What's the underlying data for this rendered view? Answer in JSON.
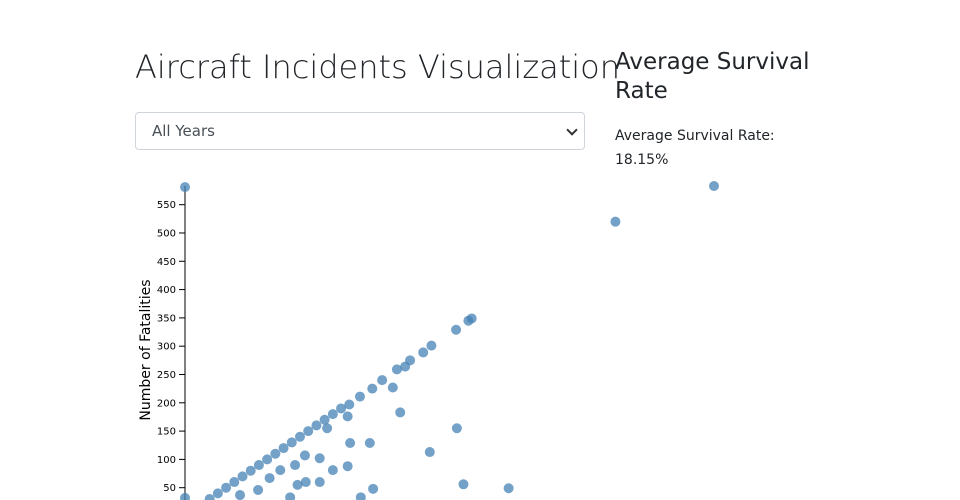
{
  "header": {
    "title": "Aircraft Incidents Visualization"
  },
  "filter": {
    "selected": "All Years"
  },
  "summary": {
    "heading": "Average Survival Rate",
    "label": "Average Survival Rate:",
    "value": "18.15%"
  },
  "chart_data": {
    "type": "scatter",
    "y_label": "Number of Fatalities",
    "color": "#4682b4",
    "xlim": [
      0,
      644
    ],
    "ylim": [
      0,
      583
    ],
    "yticks": [
      50,
      100,
      150,
      200,
      250,
      300,
      350,
      400,
      450,
      500,
      550
    ],
    "x": [
      644,
      524,
      0,
      0,
      349,
      345,
      330,
      300,
      290,
      274,
      268,
      258,
      240,
      228,
      213,
      200,
      190,
      180,
      170,
      160,
      150,
      140,
      130,
      120,
      110,
      100,
      90,
      80,
      70,
      60,
      50,
      40,
      30,
      262,
      331,
      298,
      339,
      394,
      253,
      225,
      201,
      198,
      173,
      229,
      214,
      198,
      180,
      164,
      164,
      147,
      137,
      116,
      134,
      146,
      89,
      103,
      67,
      128
    ],
    "values": [
      583,
      520,
      581,
      32,
      349,
      345,
      329,
      301,
      289,
      275,
      264,
      259,
      240,
      225,
      211,
      197,
      190,
      180,
      170,
      160,
      150,
      140,
      130,
      120,
      110,
      100,
      90,
      80,
      70,
      60,
      50,
      40,
      30,
      183,
      155,
      113,
      56,
      49,
      227,
      129,
      129,
      176,
      155,
      48,
      33,
      88,
      81,
      102,
      60,
      60,
      55,
      81,
      90,
      107,
      46,
      67,
      37,
      33
    ]
  }
}
